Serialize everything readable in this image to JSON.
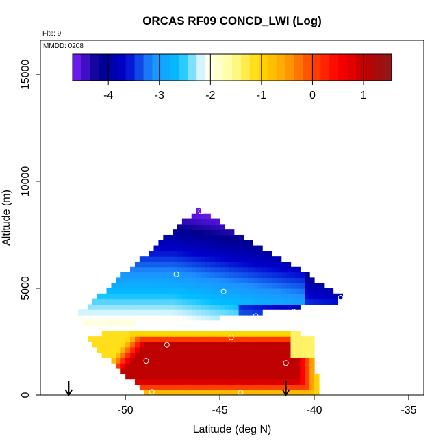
{
  "chart_data": {
    "type": "heatmap",
    "title": "ORCAS RF09 CONCD_LWI (Log)",
    "info": {
      "flts": "Flts: 9",
      "mmdd": "MMDD: 0208"
    },
    "xlabel": "Latitude (deg N)",
    "ylabel": "Altitude (m)",
    "xlim": [
      -54.5,
      -34.2
    ],
    "ylim": [
      0,
      16600
    ],
    "x_ticks": [
      -50,
      -45,
      -40,
      -35
    ],
    "y_ticks": [
      0,
      5000,
      10000,
      15000
    ],
    "colorbar": {
      "range": [
        -4.7,
        1.55
      ],
      "ticks": [
        -4,
        -3,
        -2,
        -1,
        0,
        1
      ],
      "colors": [
        "#7f1fff",
        "#00008b",
        "#0000cd",
        "#1e90ff",
        "#00bfff",
        "#ffffff",
        "#ffff99",
        "#ffd700",
        "#ffa500",
        "#ff4500",
        "#ff0000",
        "#c00000",
        "#8b1a1a"
      ]
    },
    "grid_bins": {
      "lat_step": 0.25,
      "alt_step": 250
    },
    "regions": [
      {
        "name": "upper",
        "value_range": [
          -4.6,
          -1.8
        ],
        "polygon": [
          [
            -46.2,
            8700
          ],
          [
            -38.6,
            4700
          ],
          [
            -38.6,
            4400
          ],
          [
            -44.0,
            3700
          ],
          [
            -47.5,
            3400
          ],
          [
            -51.3,
            3350
          ],
          [
            -53.0,
            3400
          ]
        ]
      },
      {
        "name": "lower",
        "value_range": [
          -1.2,
          1.1
        ],
        "polygon": [
          [
            -52.3,
            2800
          ],
          [
            -49.8,
            3000
          ],
          [
            -42.5,
            3100
          ],
          [
            -41.0,
            3000
          ],
          [
            -40.0,
            2600
          ],
          [
            -39.8,
            0
          ],
          [
            -48.8,
            0
          ]
        ]
      }
    ],
    "points": [
      {
        "lat": -46.0,
        "alt": 8600
      },
      {
        "lat": -47.3,
        "alt": 5650
      },
      {
        "lat": -44.8,
        "alt": 4850
      },
      {
        "lat": -38.6,
        "alt": 4550
      },
      {
        "lat": -41.1,
        "alt": 3900
      },
      {
        "lat": -43.1,
        "alt": 3700
      },
      {
        "lat": -44.4,
        "alt": 2700
      },
      {
        "lat": -47.8,
        "alt": 2350
      },
      {
        "lat": -48.9,
        "alt": 1600
      },
      {
        "lat": -41.5,
        "alt": 1500
      },
      {
        "lat": -48.6,
        "alt": 150
      },
      {
        "lat": -43.9,
        "alt": 120
      }
    ],
    "arrows": [
      {
        "lat": -53.0
      },
      {
        "lat": -41.5
      }
    ]
  }
}
